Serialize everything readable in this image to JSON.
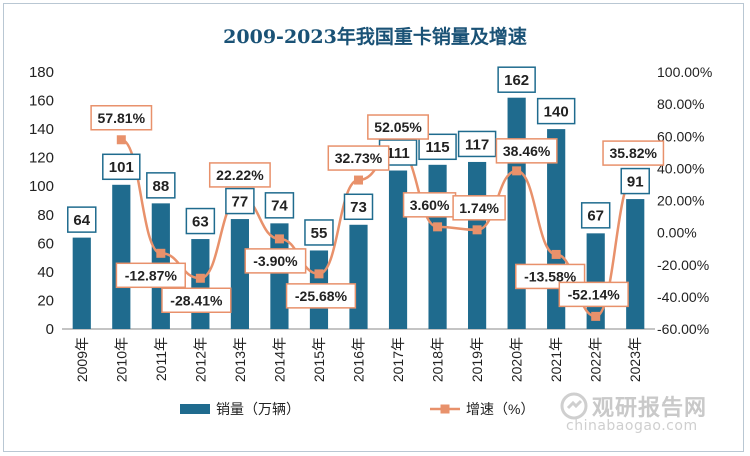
{
  "title": "2009-2023年我国重卡销量及增速",
  "watermark": {
    "cn": "观研报告网",
    "en": "chinabaogao.com"
  },
  "chart_data": {
    "type": "bar",
    "categories": [
      "2009年",
      "2010年",
      "2011年",
      "2012年",
      "2013年",
      "2014年",
      "2015年",
      "2016年",
      "2017年",
      "2018年",
      "2019年",
      "2020年",
      "2021年",
      "2022年",
      "2023年"
    ],
    "series": [
      {
        "name": "销量（万辆）",
        "type": "bar",
        "axis": "left",
        "values": [
          64,
          101,
          88,
          63,
          77,
          74,
          55,
          73,
          111,
          115,
          117,
          162,
          140,
          67,
          91
        ],
        "labels": [
          "64",
          "101",
          "88",
          "63",
          "77",
          "74",
          "55",
          "73",
          "111",
          "115",
          "117",
          "162",
          "140",
          "67",
          "91"
        ]
      },
      {
        "name": "增速（%）",
        "type": "line",
        "axis": "right",
        "values": [
          null,
          57.81,
          -12.87,
          -28.41,
          22.22,
          -3.9,
          -25.68,
          32.73,
          52.05,
          3.6,
          1.74,
          38.46,
          -13.58,
          -52.14,
          35.82
        ],
        "labels": [
          "",
          "57.81%",
          "-12.87%",
          "-28.41%",
          "22.22%",
          "-3.90%",
          "-25.68%",
          "32.73%",
          "52.05%",
          "3.60%",
          "1.74%",
          "38.46%",
          "-13.58%",
          "-52.14%",
          "35.82%"
        ]
      }
    ],
    "y_left": {
      "min": 0,
      "max": 180,
      "ticks": [
        "0",
        "20",
        "40",
        "60",
        "80",
        "100",
        "120",
        "140",
        "160",
        "180"
      ]
    },
    "y_right": {
      "min": -60,
      "max": 100,
      "ticks": [
        "-60.00%",
        "-40.00%",
        "-20.00%",
        "0.00%",
        "20.00%",
        "40.00%",
        "60.00%",
        "80.00%",
        "100.00%"
      ]
    },
    "grid": false,
    "legend_position": "bottom",
    "colors": {
      "bar": "#1f6b8e",
      "line": "#e8916b",
      "marker": "#e8916b",
      "bar_label_border": "#1f6b8e",
      "line_label_border": "#e8916b",
      "title": "#1a5276"
    }
  }
}
